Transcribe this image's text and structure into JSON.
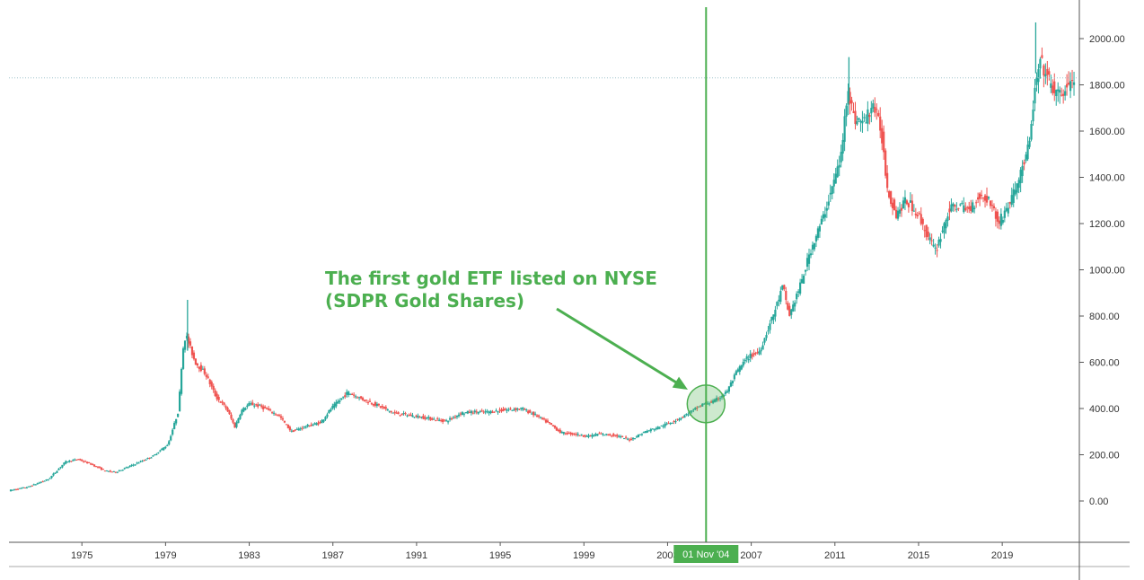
{
  "chart_data": {
    "type": "candlestick",
    "title": "",
    "xlabel": "",
    "ylabel": "",
    "x_range": [
      1971.6,
      2022.6
    ],
    "ylim": [
      -180,
      2130
    ],
    "x_ticks": [
      "1975",
      "1979",
      "1983",
      "1987",
      "1991",
      "1995",
      "1999",
      "2003",
      "2007",
      "2011",
      "2015",
      "2019"
    ],
    "y_ticks": [
      "2000.00",
      "1800.00",
      "1600.00",
      "1400.00",
      "1200.00",
      "1000.00",
      "800.00",
      "600.00",
      "400.00",
      "200.00",
      "0.00"
    ],
    "price_series": {
      "name": "",
      "x": [
        1971.6,
        1972.5,
        1973.5,
        1974.3,
        1974.9,
        1975.5,
        1976.2,
        1976.7,
        1977.5,
        1978.5,
        1979.2,
        1979.7,
        1979.9,
        1980.05,
        1980.5,
        1981,
        1981.5,
        1982.0,
        1982.4,
        1982.7,
        1983.1,
        1983.6,
        1984.5,
        1985.1,
        1985.7,
        1986.5,
        1987.0,
        1987.8,
        1988.5,
        1989.3,
        1990.0,
        1990.8,
        1991.5,
        1992.5,
        1993.2,
        1993.7,
        1994.5,
        1995.5,
        1996.1,
        1996.8,
        1997.5,
        1998.0,
        1998.6,
        1999.3,
        1999.8,
        2000.5,
        2001.3,
        2002.0,
        2002.7,
        2003.5,
        2004.1,
        2004.8,
        2005.3,
        2005.9,
        2006.4,
        2006.9,
        2007.5,
        2008.2,
        2008.6,
        2008.9,
        2009.5,
        2009.9,
        2010.5,
        2011.0,
        2011.4,
        2011.7,
        2012.0,
        2012.5,
        2012.9,
        2013.3,
        2013.6,
        2014.0,
        2014.5,
        2015.0,
        2015.5,
        2015.9,
        2016.5,
        2016.9,
        2017.5,
        2018.0,
        2018.5,
        2018.9,
        2019.5,
        2019.9,
        2020.4,
        2020.6,
        2020.9,
        2021.3,
        2021.7,
        2022.0,
        2022.5
      ],
      "y": [
        45,
        60,
        95,
        170,
        180,
        160,
        130,
        125,
        155,
        195,
        245,
        390,
        650,
        720,
        600,
        550,
        450,
        400,
        320,
        390,
        420,
        410,
        370,
        300,
        320,
        340,
        400,
        470,
        440,
        410,
        380,
        370,
        360,
        345,
        380,
        385,
        385,
        395,
        400,
        370,
        330,
        295,
        290,
        280,
        290,
        285,
        265,
        300,
        320,
        350,
        380,
        420,
        430,
        470,
        560,
        620,
        650,
        820,
        930,
        800,
        950,
        1080,
        1220,
        1370,
        1500,
        1800,
        1650,
        1640,
        1720,
        1600,
        1350,
        1240,
        1300,
        1250,
        1150,
        1080,
        1250,
        1280,
        1260,
        1320,
        1300,
        1200,
        1300,
        1400,
        1550,
        1750,
        1900,
        1820,
        1750,
        1770,
        1820
      ]
    },
    "ref_line": {
      "y": 1830,
      "style": "dotted"
    },
    "marker": {
      "x": 2004.84,
      "label": "01 Nov '04"
    },
    "annotation": {
      "lines": [
        "The first gold ETF listed on NYSE",
        "(SDPR Gold Shares)"
      ],
      "highlight": {
        "x": 2004.84,
        "y": 420
      }
    },
    "spikes": [
      {
        "x": 1980.05,
        "low": 650,
        "high": 870
      },
      {
        "x": 2011.67,
        "low": 1730,
        "high": 1920
      },
      {
        "x": 2020.6,
        "low": 1850,
        "high": 2070
      }
    ]
  },
  "colors": {
    "up": "#26a69a",
    "down": "#ef5350",
    "annotation": "#4caf50",
    "axis": "#555555",
    "ref_line": "#9fc3cc"
  }
}
